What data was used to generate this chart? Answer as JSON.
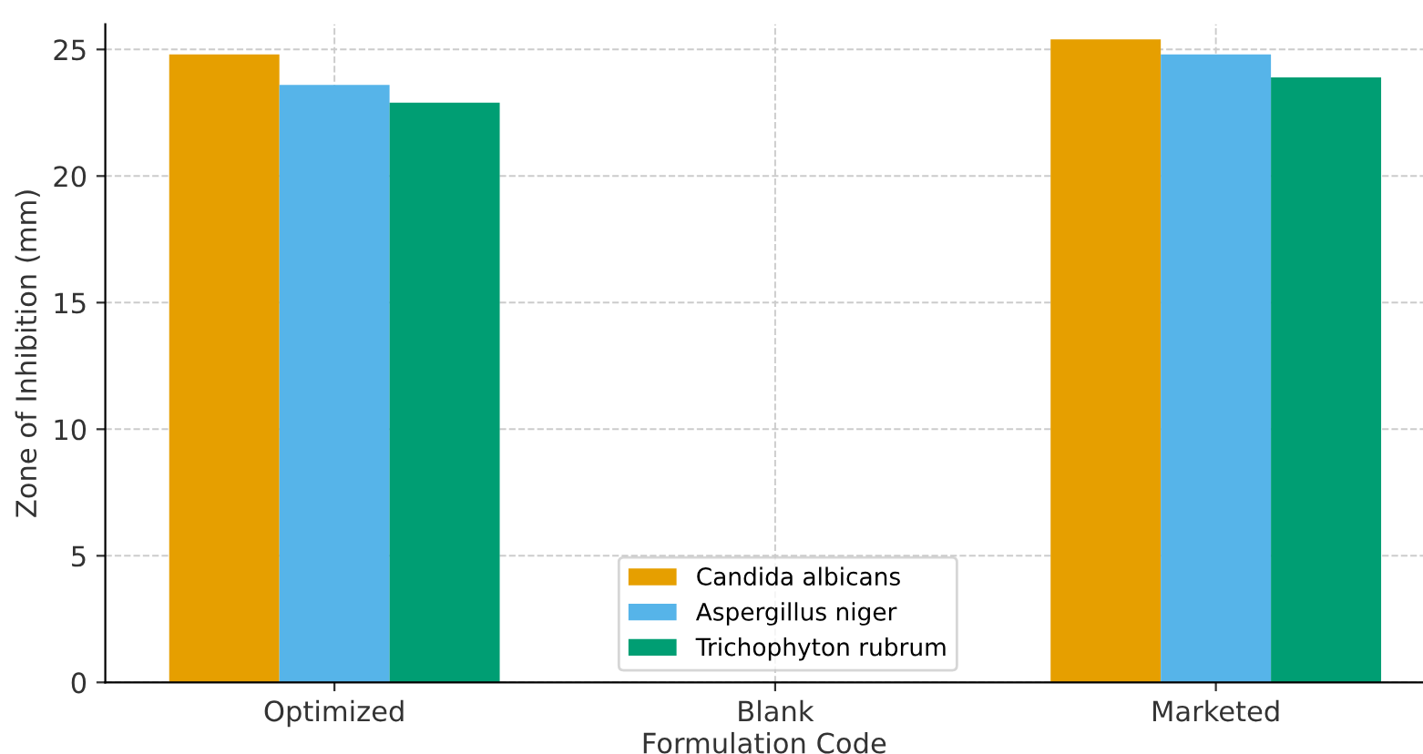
{
  "chart_data": {
    "type": "bar",
    "xlabel": "Formulation Code",
    "ylabel": "Zone of Inhibition (mm)",
    "categories": [
      "Optimized",
      "Blank",
      "Marketed"
    ],
    "series": [
      {
        "name": "Candida albicans",
        "color": "#e69f00",
        "values": [
          24.8,
          0,
          25.4
        ]
      },
      {
        "name": "Aspergillus niger",
        "color": "#56b4e9",
        "values": [
          23.6,
          0,
          24.8
        ]
      },
      {
        "name": "Trichophyton rubrum",
        "color": "#009e73",
        "values": [
          22.9,
          0,
          23.9
        ]
      }
    ],
    "ylim": [
      0,
      26
    ],
    "yticks": [
      0,
      5,
      10,
      15,
      20,
      25
    ],
    "grid": true,
    "legend": "bottom"
  }
}
